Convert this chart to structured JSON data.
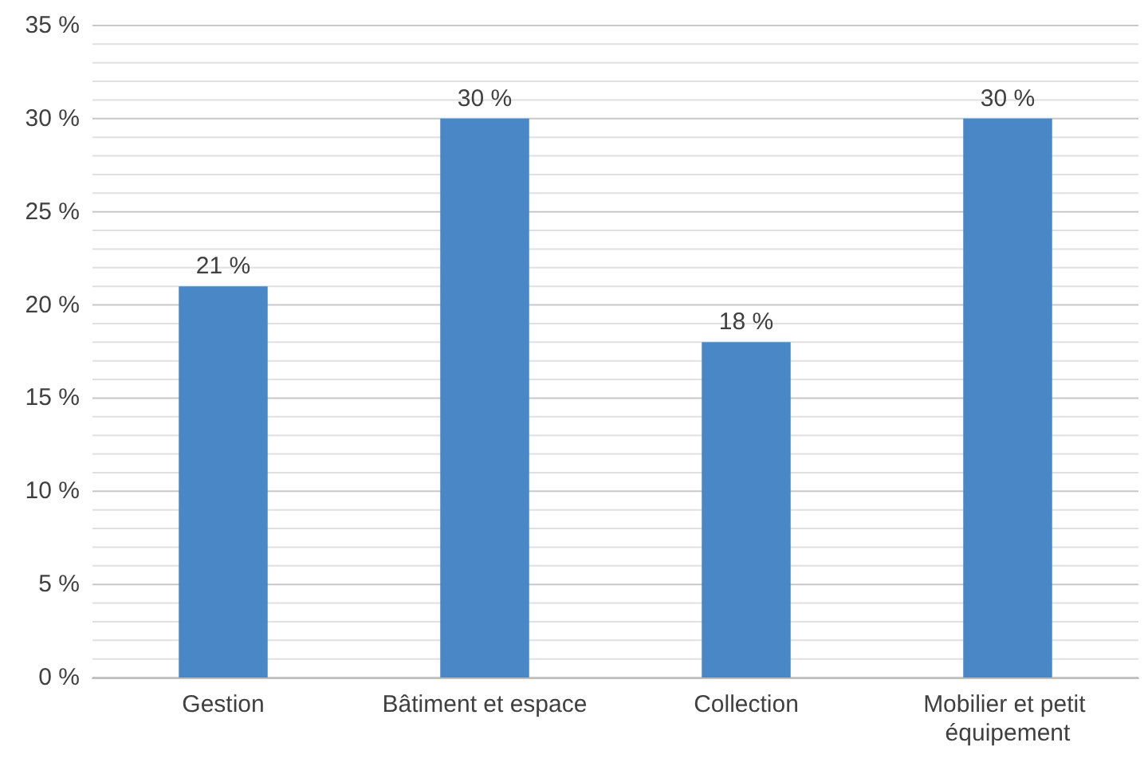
{
  "chart_data": {
    "type": "bar",
    "categories": [
      "Gestion",
      "Bâtiment et espace",
      "Collection",
      "Mobilier et petit équipement"
    ],
    "values": [
      21,
      30,
      18,
      30
    ],
    "color": "#4a87c6",
    "value_labels": [
      "21 %",
      "30 %",
      "18 %",
      "30 %"
    ],
    "ylim": [
      0,
      35
    ],
    "yticks": [
      {
        "value": 0,
        "label": "0 %"
      },
      {
        "value": 1,
        "label": null
      },
      {
        "value": 2,
        "label": null
      },
      {
        "value": 3,
        "label": null
      },
      {
        "value": 4,
        "label": null
      },
      {
        "value": 5,
        "label": "5 %"
      },
      {
        "value": 6,
        "label": null
      },
      {
        "value": 7,
        "label": null
      },
      {
        "value": 8,
        "label": null
      },
      {
        "value": 9,
        "label": null
      },
      {
        "value": 10,
        "label": "10 %"
      },
      {
        "value": 11,
        "label": null
      },
      {
        "value": 12,
        "label": null
      },
      {
        "value": 13,
        "label": null
      },
      {
        "value": 14,
        "label": null
      },
      {
        "value": 15,
        "label": "15 %"
      },
      {
        "value": 16,
        "label": null
      },
      {
        "value": 17,
        "label": null
      },
      {
        "value": 18,
        "label": null
      },
      {
        "value": 19,
        "label": null
      },
      {
        "value": 20,
        "label": "20 %"
      },
      {
        "value": 21,
        "label": null
      },
      {
        "value": 22,
        "label": null
      },
      {
        "value": 23,
        "label": null
      },
      {
        "value": 24,
        "label": null
      },
      {
        "value": 25,
        "label": "25 %"
      },
      {
        "value": 26,
        "label": null
      },
      {
        "value": 27,
        "label": null
      },
      {
        "value": 28,
        "label": null
      },
      {
        "value": 29,
        "label": null
      },
      {
        "value": 30,
        "label": "30 %"
      },
      {
        "value": 31,
        "label": null
      },
      {
        "value": 32,
        "label": null
      },
      {
        "value": 33,
        "label": null
      },
      {
        "value": 34,
        "label": null
      },
      {
        "value": 35,
        "label": "35 %"
      }
    ],
    "grid": "y"
  }
}
